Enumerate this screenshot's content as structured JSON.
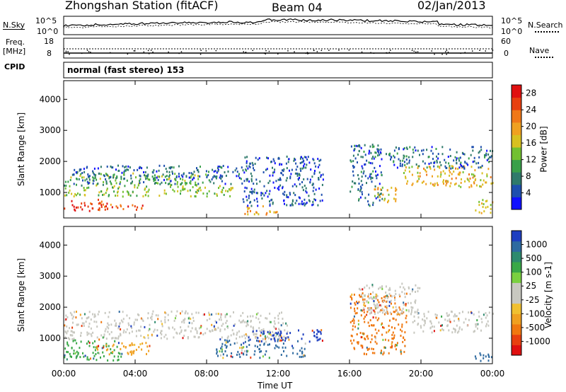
{
  "header": {
    "station_title": "Zhongshan Station (fitACF)",
    "beam": "Beam 04",
    "date": "02/Jan/2013"
  },
  "noise_panel": {
    "left_label": "N.Sky",
    "right_label": "N.Search",
    "left_ticks": [
      "10^5",
      "10^0"
    ],
    "right_ticks": [
      "10^5",
      "10^0"
    ]
  },
  "freq_panel": {
    "left_label_line1": "Freq.",
    "left_label_line2": "[MHz]",
    "right_label": "Nave",
    "left_ticks": [
      "18",
      "8"
    ],
    "right_ticks": [
      "60",
      "0"
    ]
  },
  "cpid": {
    "label": "CPID",
    "mode_text": "normal (fast stereo) 153"
  },
  "x_axis": {
    "title": "Time UT",
    "ticks": [
      "00:00",
      "04:00",
      "08:00",
      "12:00",
      "16:00",
      "20:00",
      "00:00"
    ],
    "tick_hours": [
      0,
      4,
      8,
      12,
      16,
      20,
      24
    ]
  },
  "chart_data": [
    {
      "type": "heatmap",
      "parameter": "Power",
      "ylabel": "Slant Range [km]",
      "xlabel": "",
      "xlim": [
        0,
        24
      ],
      "ylim": [
        180,
        4600
      ],
      "yticks": [
        "1000",
        "2000",
        "3000",
        "4000"
      ],
      "ytick_values": [
        1000,
        2000,
        3000,
        4000
      ],
      "colorbar": {
        "title": "Power [dB]",
        "ticks": [
          "4",
          "8",
          "12",
          "16",
          "20",
          "24",
          "28"
        ],
        "tick_values": [
          4,
          8,
          12,
          16,
          20,
          24,
          28
        ],
        "range": [
          0,
          30
        ],
        "colors": [
          "#1010ff",
          "#1e4fae",
          "#2f7a6b",
          "#39a04a",
          "#72c030",
          "#d8c020",
          "#f0a020",
          "#f07818",
          "#e84010",
          "#e01010"
        ]
      },
      "features": [
        {
          "t0": 0.0,
          "t1": 2.4,
          "r0": 400,
          "r1": 800,
          "level": 26
        },
        {
          "t0": 2.4,
          "t1": 4.8,
          "r0": 450,
          "r1": 650,
          "level": 24
        },
        {
          "t0": 0.0,
          "t1": 9.5,
          "r0": 900,
          "r1": 1250,
          "level": 14
        },
        {
          "t0": 0.0,
          "t1": 8.0,
          "r0": 1250,
          "r1": 1650,
          "level": 12
        },
        {
          "t0": 0.5,
          "t1": 10.5,
          "r0": 1300,
          "r1": 1900,
          "level": 6
        },
        {
          "t0": 10.0,
          "t1": 12.0,
          "r0": 300,
          "r1": 600,
          "level": 20
        },
        {
          "t0": 10.0,
          "t1": 14.5,
          "r0": 600,
          "r1": 2200,
          "level": 5
        },
        {
          "t0": 16.0,
          "t1": 17.8,
          "r0": 600,
          "r1": 2600,
          "level": 6
        },
        {
          "t0": 17.2,
          "t1": 18.6,
          "r0": 700,
          "r1": 1200,
          "level": 18
        },
        {
          "t0": 19.0,
          "t1": 24.0,
          "r0": 1200,
          "r1": 1900,
          "level": 18
        },
        {
          "t0": 18.0,
          "t1": 24.0,
          "r0": 1800,
          "r1": 2500,
          "level": 6
        },
        {
          "t0": 23.0,
          "t1": 24.0,
          "r0": 300,
          "r1": 800,
          "level": 16
        }
      ]
    },
    {
      "type": "heatmap",
      "parameter": "Velocity",
      "ylabel": "Slant Range [km]",
      "xlabel": "Time UT",
      "xlim": [
        0,
        24
      ],
      "ylim": [
        180,
        4600
      ],
      "yticks": [
        "1000",
        "2000",
        "3000",
        "4000"
      ],
      "ytick_values": [
        1000,
        2000,
        3000,
        4000
      ],
      "colorbar": {
        "title": "Velocity [m s-1]",
        "ticks": [
          "1000",
          "500",
          "100",
          "25",
          "-25",
          "-100",
          "-500",
          "-1000"
        ],
        "tick_values": [
          1000,
          500,
          100,
          25,
          -25,
          -100,
          -500,
          -1000
        ],
        "colors": [
          "#1f3fc0",
          "#2e6aa0",
          "#2e8a6e",
          "#3aa848",
          "#7ad040",
          "#c8c8c0",
          "#c8c8c0",
          "#f0c030",
          "#f0a020",
          "#f07810",
          "#e84010",
          "#e01010"
        ]
      },
      "features": [
        {
          "t0": 0.0,
          "t1": 3.2,
          "r0": 300,
          "r1": 1000,
          "level": "100"
        },
        {
          "t0": 1.8,
          "t1": 4.8,
          "r0": 500,
          "r1": 900,
          "level": "-100"
        },
        {
          "t0": 0.0,
          "t1": 12.5,
          "r0": 1000,
          "r1": 1900,
          "level": "-25"
        },
        {
          "t0": 8.5,
          "t1": 13.5,
          "r0": 400,
          "r1": 1000,
          "level": "500"
        },
        {
          "t0": 10.0,
          "t1": 14.5,
          "r0": 900,
          "r1": 1300,
          "level": "1000"
        },
        {
          "t0": 16.0,
          "t1": 19.2,
          "r0": 500,
          "r1": 2500,
          "level": "-500"
        },
        {
          "t0": 16.5,
          "t1": 20.0,
          "r0": 1800,
          "r1": 2800,
          "level": "25"
        },
        {
          "t0": 19.5,
          "t1": 24.0,
          "r0": 1200,
          "r1": 1900,
          "level": "-25"
        },
        {
          "t0": 22.8,
          "t1": 24.0,
          "r0": 300,
          "r1": 600,
          "level": "500"
        }
      ]
    }
  ]
}
